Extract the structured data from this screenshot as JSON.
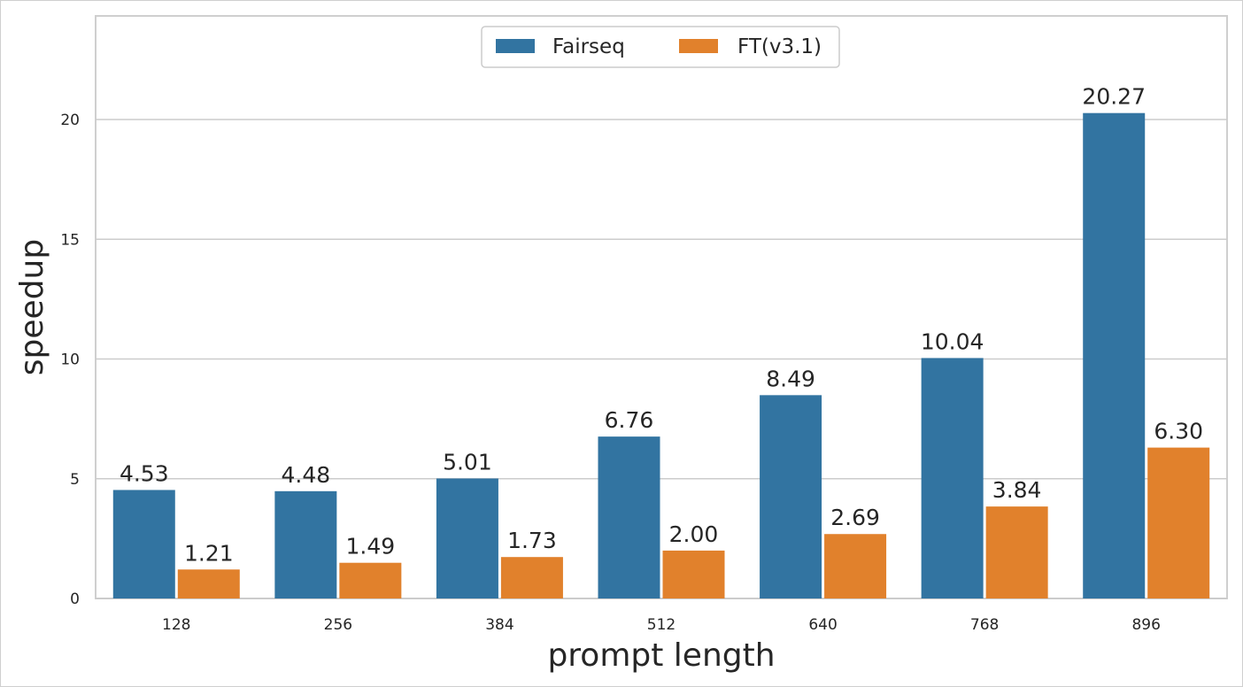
{
  "chart_data": {
    "type": "bar",
    "categories": [
      "128",
      "256",
      "384",
      "512",
      "640",
      "768",
      "896"
    ],
    "series": [
      {
        "name": "Fairseq",
        "color": "#3274a1",
        "values": [
          4.53,
          4.48,
          5.01,
          6.76,
          8.49,
          10.04,
          20.27
        ],
        "labels": [
          "4.53",
          "4.48",
          "5.01",
          "6.76",
          "8.49",
          "10.04",
          "20.27"
        ]
      },
      {
        "name": "FT(v3.1)",
        "color": "#e1812c",
        "values": [
          1.21,
          1.49,
          1.73,
          2.0,
          2.69,
          3.84,
          6.3
        ],
        "labels": [
          "1.21",
          "1.49",
          "1.73",
          "2.00",
          "2.69",
          "3.84",
          "6.30"
        ]
      }
    ],
    "xlabel": "prompt length",
    "ylabel": "speedup",
    "ylim": [
      0,
      20
    ],
    "yticks": [
      "0",
      "5",
      "10",
      "15",
      "20"
    ],
    "grid": true,
    "legend_position": "top-center"
  }
}
